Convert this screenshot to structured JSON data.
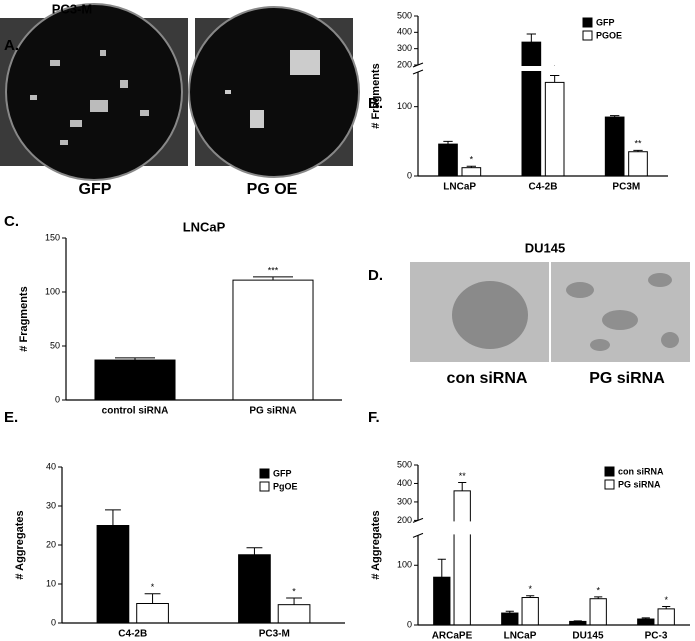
{
  "images": [
    {
      "label": "A.",
      "title": "PC3-M",
      "captions": [
        "GFP",
        "PG OE"
      ]
    },
    {
      "label": "D.",
      "title": "DU145",
      "captions": [
        "con siRNA",
        "PG siRNA"
      ]
    }
  ],
  "chart_data": [
    {
      "type": "bar",
      "label": "B.",
      "ylabel": "# Fragments",
      "categories": [
        "LNCaP",
        "C4-2B",
        "PC3M"
      ],
      "series": [
        {
          "name": "GFP",
          "color": "#000000",
          "values": [
            46,
            340,
            85
          ],
          "errors": [
            4,
            50,
            2
          ],
          "annotations": [
            null,
            null,
            null
          ]
        },
        {
          "name": "PGOE",
          "color": "#ffffff",
          "values": [
            12,
            135,
            35
          ],
          "errors": [
            2,
            10,
            2
          ],
          "annotations": [
            "*",
            "*",
            "**"
          ]
        }
      ],
      "ylim": [
        0,
        500
      ],
      "ybreak": [
        150,
        200
      ],
      "yticks": [
        0,
        100,
        200,
        300,
        400,
        500
      ],
      "legend": "upper right"
    },
    {
      "type": "bar",
      "label": "C.",
      "title": "LNCaP",
      "ylabel": "# Fragments",
      "categories": [
        "control siRNA",
        "PG siRNA"
      ],
      "series": [
        {
          "colors": [
            "#000000",
            "#ffffff"
          ],
          "values": [
            37,
            111
          ],
          "errors": [
            2,
            3
          ],
          "annotations": [
            null,
            "***"
          ]
        }
      ],
      "ylim": [
        0,
        150
      ],
      "yticks": [
        0,
        50,
        100,
        150
      ]
    },
    {
      "type": "bar",
      "label": "E.",
      "ylabel": "# Aggregates",
      "categories": [
        "C4-2B",
        "PC3-M"
      ],
      "series": [
        {
          "name": "GFP",
          "color": "#000000",
          "values": [
            25,
            17.5
          ],
          "errors": [
            4,
            1.8
          ],
          "annotations": [
            null,
            null
          ]
        },
        {
          "name": "PgOE",
          "color": "#ffffff",
          "values": [
            5,
            4.7
          ],
          "errors": [
            2.5,
            1.7
          ],
          "annotations": [
            "*",
            "*"
          ]
        }
      ],
      "ylim": [
        0,
        40
      ],
      "yticks": [
        0,
        10,
        20,
        30,
        40
      ],
      "legend": "upper right"
    },
    {
      "type": "bar",
      "label": "F.",
      "ylabel": "# Aggregates",
      "categories": [
        "ARCaPE",
        "LNCaP",
        "DU145",
        "PC-3"
      ],
      "series": [
        {
          "name": "con siRNA",
          "color": "#000000",
          "values": [
            80,
            20,
            6,
            10
          ],
          "errors": [
            30,
            3,
            1,
            2
          ],
          "annotations": [
            null,
            null,
            null,
            null
          ]
        },
        {
          "name": "PG siRNA",
          "color": "#ffffff",
          "values": [
            360,
            46,
            44,
            27
          ],
          "errors": [
            45,
            3,
            3,
            4
          ],
          "annotations": [
            "**",
            "*",
            "*",
            "*"
          ]
        }
      ],
      "ylim": [
        0,
        500
      ],
      "ybreak": [
        150,
        200
      ],
      "yticks": [
        0,
        100,
        200,
        300,
        400,
        500
      ],
      "legend": "upper right"
    }
  ]
}
